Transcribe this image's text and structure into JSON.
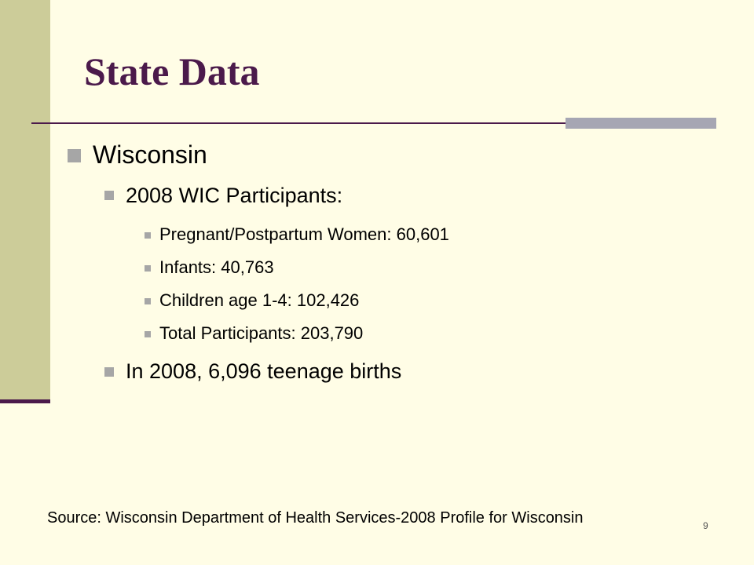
{
  "slide": {
    "title": "State Data",
    "bullets": {
      "label": "Wisconsin",
      "items": [
        {
          "label": "2008 WIC Participants:",
          "items": [
            "Pregnant/Postpartum Women: 60,601",
            "Infants: 40,763",
            "Children age 1-4: 102,426",
            "Total Participants: 203,790"
          ]
        },
        {
          "label": "In 2008, 6,096 teenage births"
        }
      ]
    },
    "source": "Source: Wisconsin Department of Health Services-2008 Profile for Wisconsin",
    "page_number": "9"
  }
}
